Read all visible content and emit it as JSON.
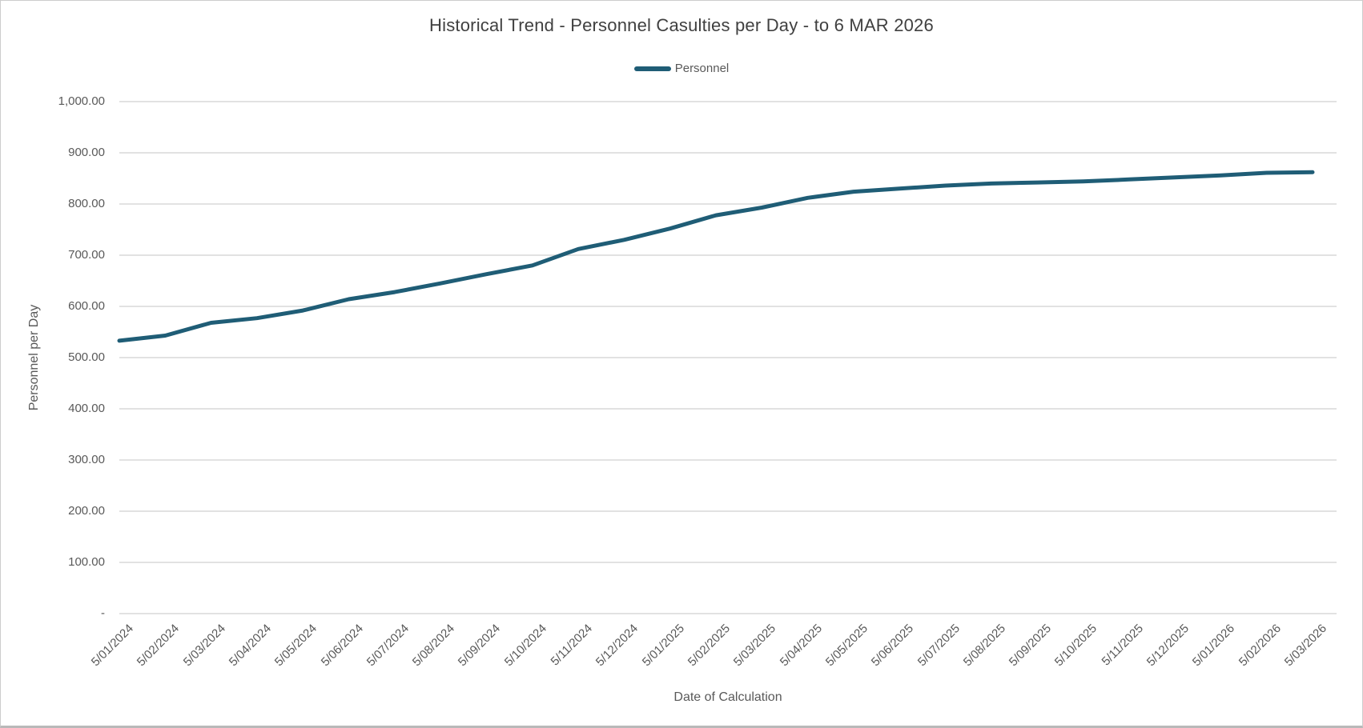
{
  "colors": {
    "line": "#1F5D76",
    "axis_text": "#595959",
    "title_text": "#404040",
    "gridline": "#D9D9D9",
    "background": "#FFFFFF"
  },
  "legend": {
    "entries": [
      {
        "label": "Personnel",
        "color": "#1F5D76"
      }
    ]
  },
  "chart_data": {
    "type": "line",
    "title": "Historical Trend - Personnel Casulties per Day - to 6 MAR 2026",
    "xlabel": "Date of Calculation",
    "ylabel": "Personnel per Day",
    "legend_position": "top-center",
    "grid": "horizontal-only",
    "ylim": [
      0,
      1000
    ],
    "y_ticks": [
      {
        "value": 0,
        "label": "-"
      },
      {
        "value": 100,
        "label": "100.00"
      },
      {
        "value": 200,
        "label": "200.00"
      },
      {
        "value": 300,
        "label": "300.00"
      },
      {
        "value": 400,
        "label": "400.00"
      },
      {
        "value": 500,
        "label": "500.00"
      },
      {
        "value": 600,
        "label": "600.00"
      },
      {
        "value": 700,
        "label": "700.00"
      },
      {
        "value": 800,
        "label": "800.00"
      },
      {
        "value": 900,
        "label": "900.00"
      },
      {
        "value": 1000,
        "label": "1,000.00"
      }
    ],
    "categories": [
      "5/01/2024",
      "5/02/2024",
      "5/03/2024",
      "5/04/2024",
      "5/05/2024",
      "5/06/2024",
      "5/07/2024",
      "5/08/2024",
      "5/09/2024",
      "5/10/2024",
      "5/11/2024",
      "5/12/2024",
      "5/01/2025",
      "5/02/2025",
      "5/03/2025",
      "5/04/2025",
      "5/05/2025",
      "5/06/2025",
      "5/07/2025",
      "5/08/2025",
      "5/09/2025",
      "5/10/2025",
      "5/11/2025",
      "5/12/2025",
      "5/01/2026",
      "5/02/2026",
      "5/03/2026"
    ],
    "series": [
      {
        "name": "Personnel",
        "color": "#1F5D76",
        "values": [
          533,
          543,
          568,
          577,
          592,
          614,
          628,
          645,
          663,
          680,
          712,
          730,
          752,
          778,
          793,
          812,
          824,
          830,
          836,
          840,
          842,
          844,
          848,
          852,
          856,
          861,
          862
        ]
      }
    ]
  }
}
